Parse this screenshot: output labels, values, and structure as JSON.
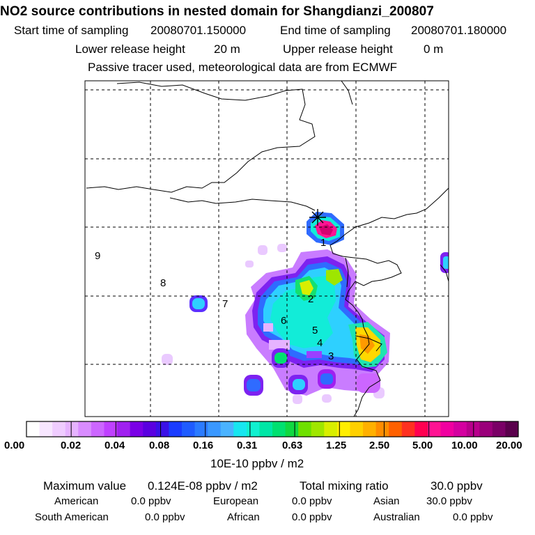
{
  "header": {
    "title": "NO2 source contributions in nested domain for Shangdianzi_200807",
    "start_label": "Start time of sampling",
    "start_value": "20080701.150000",
    "end_label": "End time of sampling",
    "end_value": "20080701.180000",
    "lower_label": "Lower release height",
    "lower_value": "20 m",
    "upper_label": "Upper release height",
    "upper_value": "0 m",
    "note": "Passive tracer used, meteorological data are from ECMWF"
  },
  "map": {
    "region_labels": [
      "1",
      "2",
      "3",
      "4",
      "5",
      "6",
      "7",
      "8",
      "9"
    ],
    "receptor_marker": "Shangdianzi receptor (star)"
  },
  "colorbar": {
    "tick_labels": [
      "0.00",
      "0.02",
      "0.04",
      "0.08",
      "0.16",
      "0.31",
      "0.63",
      "1.25",
      "2.50",
      "5.00",
      "10.00",
      "20.00"
    ],
    "colors": [
      "#ffffff",
      "#f7e6ff",
      "#efccff",
      "#e6b3ff",
      "#d98cff",
      "#cc66ff",
      "#bf40ff",
      "#a020f0",
      "#7a00e6",
      "#5a00e0",
      "#3a10e6",
      "#1a3cff",
      "#1f5cff",
      "#2b7bff",
      "#3a98ff",
      "#4ab3ff",
      "#17e6f0",
      "#10f0d0",
      "#00e6a6",
      "#00e070",
      "#10d840",
      "#6ee000",
      "#a0e600",
      "#d8ee00",
      "#ffee00",
      "#ffd000",
      "#ffb000",
      "#ff8c00",
      "#ff6000",
      "#ff3020",
      "#ff0050",
      "#ff1493",
      "#f000a0",
      "#d400a0",
      "#b8008c",
      "#9a007a",
      "#7a0066",
      "#5a004c"
    ],
    "unit": "10E-10 ppbv / m2"
  },
  "summary": {
    "max_label": "Maximum value",
    "max_value": "0.124E-08 ppbv / m2",
    "total_label": "Total mixing ratio",
    "total_value": "30.0 ppbv",
    "regions": [
      {
        "name": "American",
        "value": "0.0 ppbv"
      },
      {
        "name": "European",
        "value": "0.0 ppbv"
      },
      {
        "name": "Asian",
        "value": "30.0 ppbv"
      },
      {
        "name": "South American",
        "value": "0.0 ppbv"
      },
      {
        "name": "African",
        "value": "0.0 ppbv"
      },
      {
        "name": "Australian",
        "value": "0.0 ppbv"
      }
    ]
  },
  "colors": {
    "background": "#ffffff",
    "ink": "#000000"
  }
}
